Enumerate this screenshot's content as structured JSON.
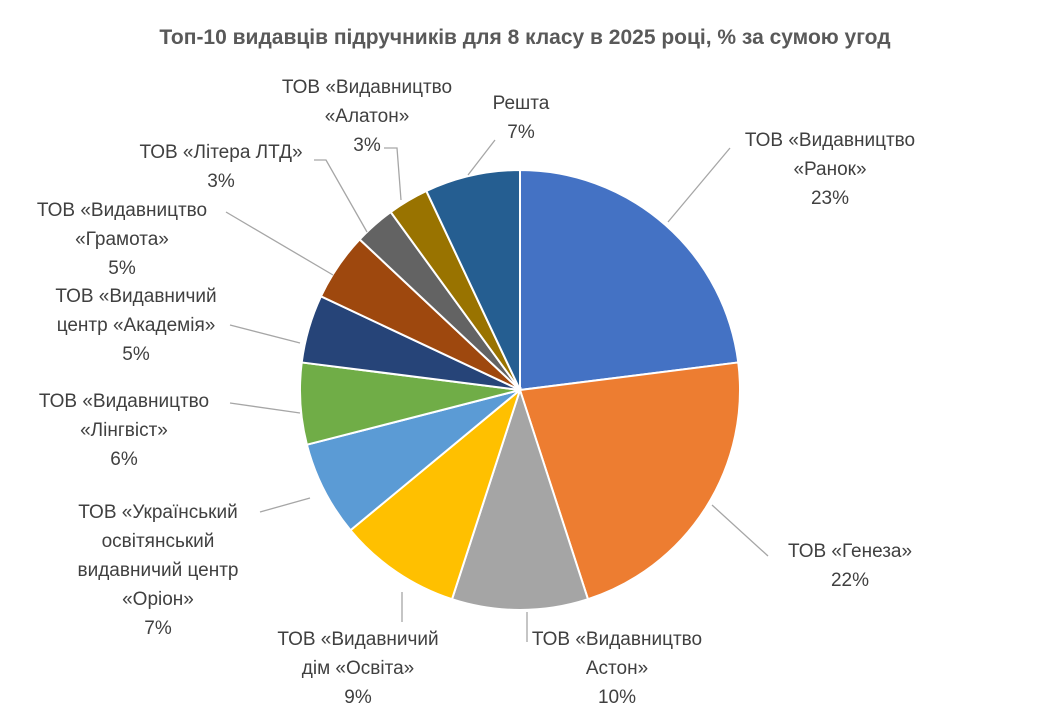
{
  "chart_data": {
    "type": "pie",
    "title": "Топ-10 видавців підручників для 8 класу в 2025 році, % за сумою угод",
    "slices": [
      {
        "label_lines": [
          "ТОВ «Видавництво",
          "«Ранок»"
        ],
        "value": 23,
        "value_label": "23%",
        "color": "#4472c4"
      },
      {
        "label_lines": [
          "ТОВ «Генеза»"
        ],
        "value": 22,
        "value_label": "22%",
        "color": "#ed7d31"
      },
      {
        "label_lines": [
          "ТОВ «Видавництво",
          "Астон»"
        ],
        "value": 10,
        "value_label": "10%",
        "color": "#a5a5a5"
      },
      {
        "label_lines": [
          "ТОВ «Видавничий",
          "дім «Освіта»"
        ],
        "value": 9,
        "value_label": "9%",
        "color": "#ffc000"
      },
      {
        "label_lines": [
          "ТОВ «Український",
          "освітянський",
          "видавничий центр",
          "«Оріон»"
        ],
        "value": 7,
        "value_label": "7%",
        "color": "#5b9bd5"
      },
      {
        "label_lines": [
          "ТОВ «Видавництво",
          "«Лінгвіст»"
        ],
        "value": 6,
        "value_label": "6%",
        "color": "#70ad47"
      },
      {
        "label_lines": [
          "ТОВ «Видавничий",
          "центр «Академія»"
        ],
        "value": 5,
        "value_label": "5%",
        "color": "#264478"
      },
      {
        "label_lines": [
          "ТОВ «Видавництво",
          "«Грамота»"
        ],
        "value": 5,
        "value_label": "5%",
        "color": "#9e480e"
      },
      {
        "label_lines": [
          "ТОВ «Літера ЛТД»"
        ],
        "value": 3,
        "value_label": "3%",
        "color": "#636363"
      },
      {
        "label_lines": [
          "ТОВ «Видавництво",
          "«Алатон»"
        ],
        "value": 3,
        "value_label": "3%",
        "color": "#997300"
      },
      {
        "label_lines": [
          "Решта"
        ],
        "value": 7,
        "value_label": "7%",
        "color": "#255e91"
      }
    ],
    "legend": "none",
    "data_labels": "outside with leader lines"
  }
}
